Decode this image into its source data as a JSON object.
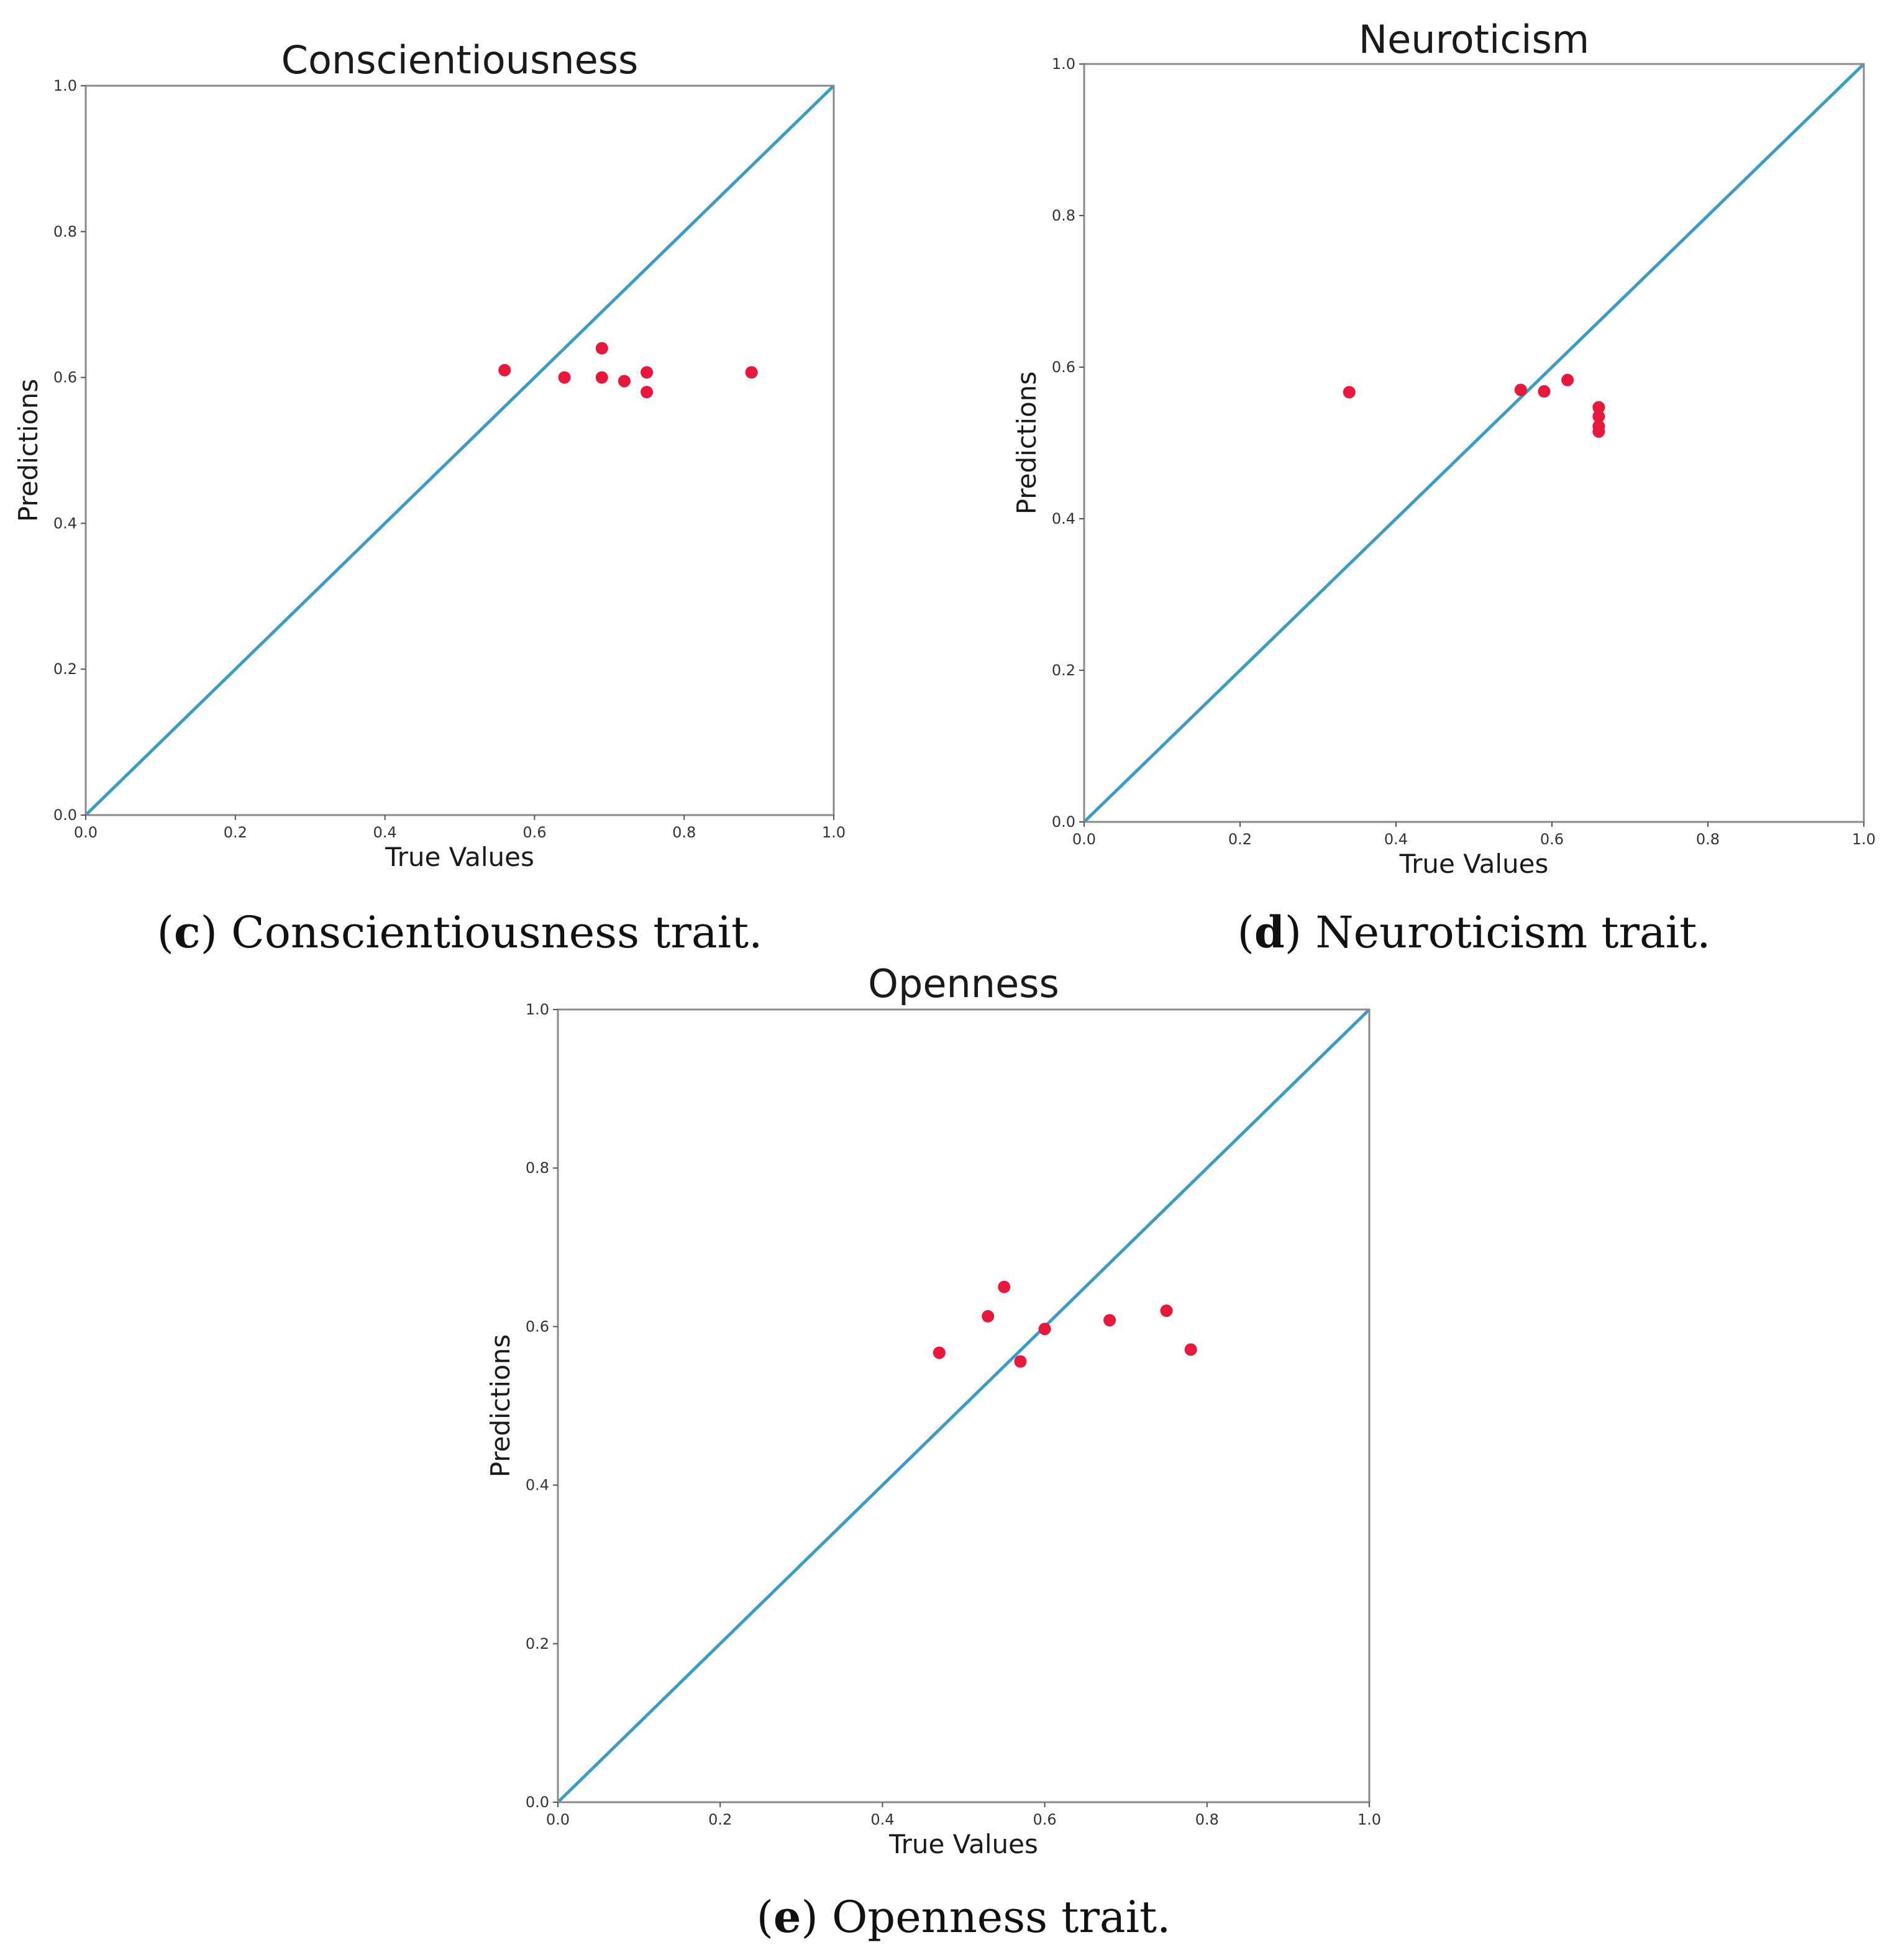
{
  "colors": {
    "diagonal": "#3a9bc8",
    "points": "#e8183c"
  },
  "chart_data": [
    {
      "id": "c",
      "type": "scatter",
      "title": "Conscientiousness",
      "xlabel": "True Values",
      "ylabel": "Predictions",
      "xlim": [
        0.0,
        1.0
      ],
      "ylim": [
        0.0,
        1.0
      ],
      "xticks": [
        "0.0",
        "0.2",
        "0.4",
        "0.6",
        "0.8",
        "1.0"
      ],
      "yticks": [
        "0.0",
        "0.2",
        "0.4",
        "0.6",
        "0.8",
        "1.0"
      ],
      "reference_line": {
        "from": [
          0,
          0
        ],
        "to": [
          1,
          1
        ]
      },
      "points": [
        {
          "x": 0.56,
          "y": 0.61
        },
        {
          "x": 0.64,
          "y": 0.6
        },
        {
          "x": 0.69,
          "y": 0.64
        },
        {
          "x": 0.69,
          "y": 0.6
        },
        {
          "x": 0.72,
          "y": 0.595
        },
        {
          "x": 0.75,
          "y": 0.607
        },
        {
          "x": 0.75,
          "y": 0.58
        },
        {
          "x": 0.89,
          "y": 0.607
        }
      ],
      "caption_letter": "c",
      "caption_text": "Conscientiousness trait."
    },
    {
      "id": "d",
      "type": "scatter",
      "title": "Neuroticism",
      "xlabel": "True Values",
      "ylabel": "Predictions",
      "xlim": [
        0.0,
        1.0
      ],
      "ylim": [
        0.0,
        1.0
      ],
      "xticks": [
        "0.0",
        "0.2",
        "0.4",
        "0.6",
        "0.8",
        "1.0"
      ],
      "yticks": [
        "0.0",
        "0.2",
        "0.4",
        "0.6",
        "0.8",
        "1.0"
      ],
      "reference_line": {
        "from": [
          0,
          0
        ],
        "to": [
          1,
          1
        ]
      },
      "points": [
        {
          "x": 0.34,
          "y": 0.567
        },
        {
          "x": 0.56,
          "y": 0.57
        },
        {
          "x": 0.59,
          "y": 0.568
        },
        {
          "x": 0.62,
          "y": 0.583
        },
        {
          "x": 0.66,
          "y": 0.547
        },
        {
          "x": 0.66,
          "y": 0.535
        },
        {
          "x": 0.66,
          "y": 0.522
        },
        {
          "x": 0.66,
          "y": 0.515
        }
      ],
      "caption_letter": "d",
      "caption_text": "Neuroticism trait."
    },
    {
      "id": "e",
      "type": "scatter",
      "title": "Openness",
      "xlabel": "True Values",
      "ylabel": "Predictions",
      "xlim": [
        0.0,
        1.0
      ],
      "ylim": [
        0.0,
        1.0
      ],
      "xticks": [
        "0.0",
        "0.2",
        "0.4",
        "0.6",
        "0.8",
        "1.0"
      ],
      "yticks": [
        "0.0",
        "0.2",
        "0.4",
        "0.6",
        "0.8",
        "1.0"
      ],
      "reference_line": {
        "from": [
          0,
          0
        ],
        "to": [
          1,
          1
        ]
      },
      "points": [
        {
          "x": 0.47,
          "y": 0.567
        },
        {
          "x": 0.53,
          "y": 0.613
        },
        {
          "x": 0.55,
          "y": 0.65
        },
        {
          "x": 0.57,
          "y": 0.556
        },
        {
          "x": 0.6,
          "y": 0.597
        },
        {
          "x": 0.68,
          "y": 0.608
        },
        {
          "x": 0.75,
          "y": 0.62
        },
        {
          "x": 0.78,
          "y": 0.571
        }
      ],
      "caption_letter": "e",
      "caption_text": "Openness trait."
    }
  ]
}
